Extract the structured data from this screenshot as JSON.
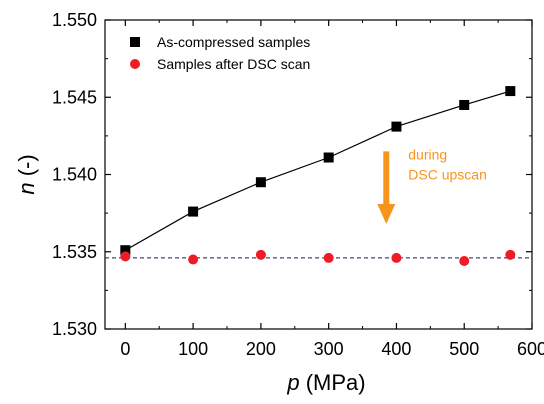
{
  "chart_data": {
    "type": "scatter",
    "title": "",
    "xlabel": {
      "var": "p",
      "unit": "(MPa)"
    },
    "ylabel": {
      "var": "n",
      "unit": "(-)"
    },
    "xlim": [
      -30,
      600
    ],
    "ylim": [
      1.53,
      1.55
    ],
    "xticks": [
      "0",
      "100",
      "200",
      "300",
      "400",
      "500",
      "600"
    ],
    "yticks": [
      "1.530",
      "1.535",
      "1.540",
      "1.545",
      "1.550"
    ],
    "grid": false,
    "legend_position": "top-left",
    "series": [
      {
        "name": "As-compressed samples",
        "marker": "square",
        "color": "#000000",
        "line": "solid",
        "x": [
          0,
          100,
          200,
          300,
          400,
          500,
          568
        ],
        "y": [
          1.5351,
          1.5376,
          1.5395,
          1.5411,
          1.5431,
          1.5445,
          1.5454
        ]
      },
      {
        "name": "Samples after DSC scan",
        "marker": "circle",
        "color": "#ee1c25",
        "line": "none",
        "x": [
          0,
          100,
          200,
          300,
          400,
          500,
          568
        ],
        "y": [
          1.5347,
          1.5345,
          1.5348,
          1.5346,
          1.5346,
          1.5344,
          1.5348
        ]
      }
    ],
    "reference_line": {
      "y": 1.5346,
      "style": "dashed",
      "color": "#1a1a66"
    },
    "annotation": {
      "lines": [
        "during",
        "DSC upscan"
      ],
      "color": "#f7941d",
      "arrow": "down",
      "x": 385,
      "y_from": 1.5415,
      "y_to": 1.5368
    }
  }
}
